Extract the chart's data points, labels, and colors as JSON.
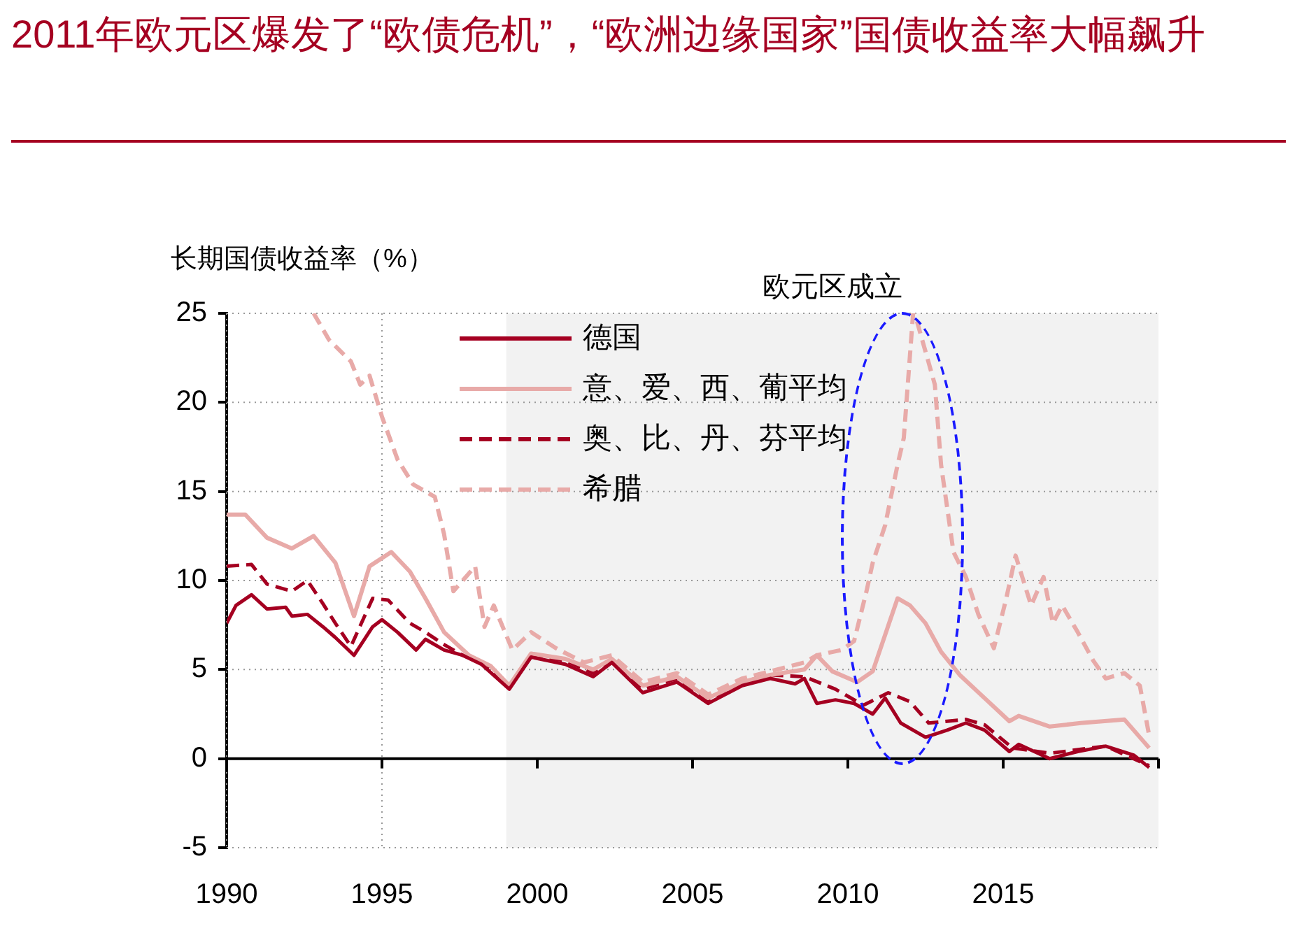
{
  "chart_data": {
    "type": "line",
    "title": "2011年欧元区爆发了“欧债危机”，“欧洲边缘国家”国债收益率大幅飙升",
    "ylabel": "长期国债收益率（%）",
    "xlim": [
      1990,
      2020
    ],
    "xticks": [
      1990,
      1995,
      2000,
      2005,
      2010,
      2015
    ],
    "ylim": [
      -5,
      25
    ],
    "yticks": [
      -5,
      0,
      5,
      10,
      15,
      20,
      25
    ],
    "grid": true,
    "legend": "top left",
    "bands": [
      {
        "axis": "x",
        "from": 1999,
        "to": 2020,
        "label": "欧元区成立",
        "color": "#f2f2f2"
      }
    ],
    "ref_lines": [
      {
        "axis": "y",
        "value": 0,
        "color": "#000000"
      }
    ],
    "series": [
      {
        "name": "德国",
        "color": "#a50021",
        "line_style": "solid",
        "x": [
          1990,
          1990.3,
          1990.8,
          1991.3,
          1991.9,
          1992.1,
          1992.6,
          1993.1,
          1993.5,
          1994.1,
          1994.7,
          1995.0,
          1995.5,
          1996.1,
          1996.4,
          1997.0,
          1997.6,
          1998.2,
          1999.1,
          1999.8,
          2000.9,
          2001.8,
          2002.4,
          2003.4,
          2004.5,
          2005.5,
          2006.6,
          2007.5,
          2008.3,
          2008.6,
          2009.0,
          2009.6,
          2010.2,
          2010.8,
          2011.2,
          2011.7,
          2012.5,
          2013.2,
          2013.8,
          2014.4,
          2015.2,
          2015.5,
          2016.5,
          2017.4,
          2018.3,
          2019.2,
          2019.7
        ],
        "values": [
          7.6,
          8.6,
          9.2,
          8.4,
          8.5,
          8.0,
          8.1,
          7.4,
          6.8,
          5.8,
          7.4,
          7.8,
          7.1,
          6.1,
          6.7,
          6.1,
          5.8,
          5.3,
          3.9,
          5.7,
          5.3,
          4.6,
          5.4,
          3.7,
          4.3,
          3.1,
          4.1,
          4.5,
          4.2,
          4.5,
          3.1,
          3.3,
          3.1,
          2.5,
          3.4,
          2.0,
          1.2,
          1.6,
          2.0,
          1.6,
          0.4,
          0.8,
          0.0,
          0.4,
          0.7,
          0.2,
          -0.5
        ]
      },
      {
        "name": "意、爱、西、葡平均",
        "color": "#e8aaa8",
        "line_style": "solid",
        "x": [
          1990,
          1990.6,
          1991.3,
          1992.1,
          1992.8,
          1993.5,
          1994.1,
          1994.6,
          1995.3,
          1995.9,
          1996.4,
          1997.0,
          1997.8,
          1998.5,
          1999.1,
          1999.8,
          2000.9,
          2001.8,
          2002.4,
          2003.4,
          2004.5,
          2005.5,
          2006.6,
          2007.5,
          2008.6,
          2009.0,
          2009.5,
          2010.3,
          2010.8,
          2011.6,
          2012.0,
          2012.5,
          2013.0,
          2013.6,
          2014.4,
          2015.2,
          2015.5,
          2016.5,
          2017.5,
          2018.9,
          2019.7
        ],
        "values": [
          13.7,
          13.7,
          12.4,
          11.8,
          12.5,
          11.0,
          8.0,
          10.8,
          11.6,
          10.5,
          9.0,
          7.1,
          5.8,
          5.2,
          4.1,
          5.9,
          5.6,
          5.0,
          5.6,
          4.1,
          4.6,
          3.4,
          4.3,
          4.7,
          5.0,
          5.8,
          4.9,
          4.3,
          4.9,
          9.0,
          8.6,
          7.6,
          6.0,
          4.7,
          3.4,
          2.1,
          2.4,
          1.8,
          2.0,
          2.2,
          0.6
        ]
      },
      {
        "name": "奥、比、丹、芬平均",
        "color": "#a50021",
        "line_style": "dashed",
        "x": [
          1990,
          1990.8,
          1991.3,
          1992.1,
          1992.6,
          1993.1,
          1993.5,
          1994.0,
          1994.7,
          1995.2,
          1995.9,
          1996.4,
          1997.0,
          1997.6,
          1998.2,
          1999.1,
          1999.8,
          2000.9,
          2001.8,
          2002.4,
          2003.4,
          2004.5,
          2005.5,
          2006.6,
          2007.5,
          2008.6,
          2009.6,
          2010.5,
          2011.3,
          2012.0,
          2012.6,
          2013.8,
          2014.4,
          2015.3,
          2016.5,
          2018.3,
          2019.7
        ],
        "values": [
          10.8,
          10.9,
          9.8,
          9.4,
          10.0,
          8.7,
          7.6,
          6.3,
          9.0,
          8.9,
          7.6,
          7.1,
          6.4,
          5.8,
          5.4,
          4.0,
          5.8,
          5.5,
          4.8,
          5.6,
          3.9,
          4.5,
          3.3,
          4.3,
          4.7,
          4.6,
          3.9,
          3.0,
          3.7,
          3.2,
          2.0,
          2.2,
          1.9,
          0.6,
          0.3,
          0.7,
          -0.4
        ]
      },
      {
        "name": "希腊",
        "color": "#e8aaa8",
        "line_style": "dashed",
        "x": [
          1992.8,
          1993.3,
          1994.0,
          1994.3,
          1994.6,
          1995.0,
          1995.5,
          1996.0,
          1996.7,
          1997.0,
          1997.3,
          1997.7,
          1998.0,
          1998.3,
          1998.6,
          1999.2,
          1999.8,
          2000.6,
          2001.5,
          2002.4,
          2003.4,
          2004.5,
          2005.5,
          2006.6,
          2007.5,
          2008.6,
          2009.0,
          2009.8,
          2010.2,
          2010.6,
          2010.8,
          2011.2,
          2011.6,
          2011.8,
          2012.1,
          2012.2,
          2012.8,
          2013.0,
          2013.4,
          2013.8,
          2014.2,
          2014.7,
          2015.1,
          2015.4,
          2015.9,
          2016.3,
          2016.6,
          2016.9,
          2017.4,
          2017.9,
          2018.3,
          2018.9,
          2019.4,
          2019.7
        ],
        "values": [
          25,
          23.5,
          22.3,
          21,
          21.5,
          19.2,
          16.8,
          15.4,
          14.7,
          12.6,
          9.4,
          10.2,
          10.8,
          7.4,
          8.6,
          6.1,
          7.1,
          6.2,
          5.4,
          5.8,
          4.3,
          4.8,
          3.6,
          4.5,
          4.9,
          5.4,
          5.8,
          6.1,
          6.6,
          9.4,
          11.0,
          13.1,
          16.5,
          18.0,
          25,
          24.7,
          21.0,
          16.5,
          11.6,
          10.2,
          8.1,
          6.2,
          9.0,
          11.4,
          8.6,
          10.2,
          7.6,
          8.6,
          7.1,
          5.5,
          4.5,
          4.8,
          4.1,
          1.3
        ]
      }
    ]
  }
}
